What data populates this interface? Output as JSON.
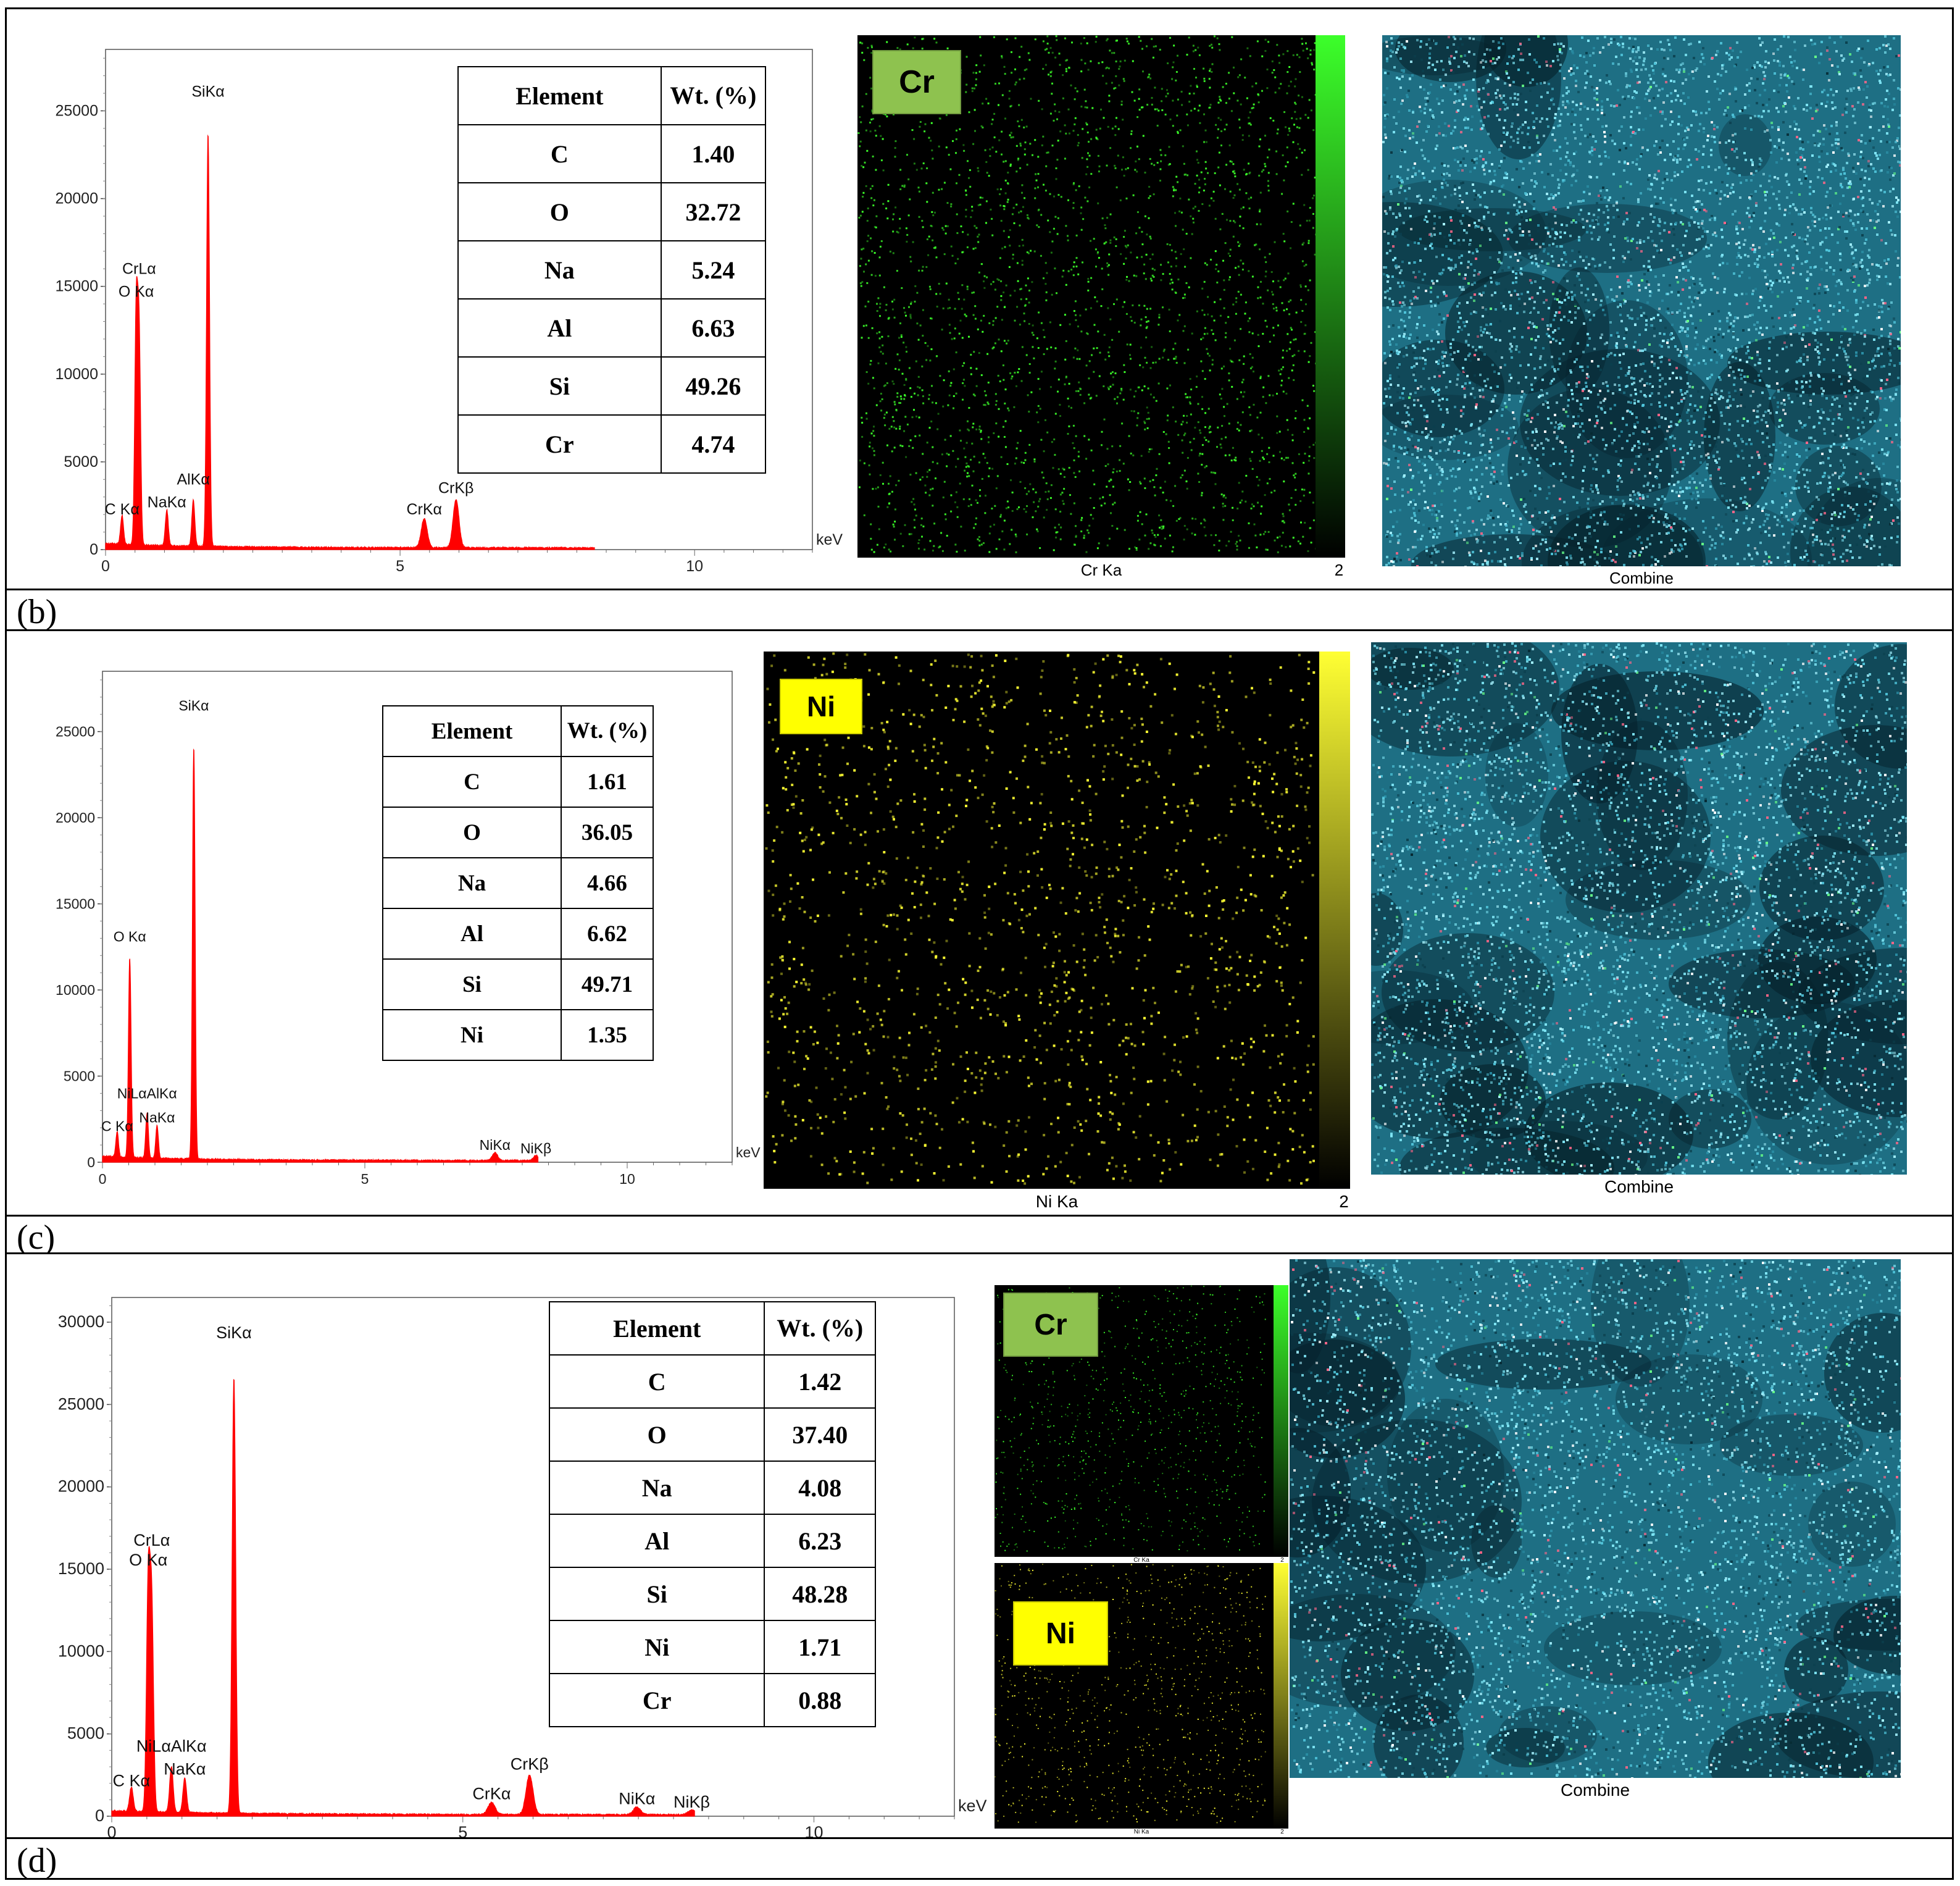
{
  "panels": [
    {
      "id": "b",
      "label": "(b)",
      "spectrum": {
        "y_ticks": [
          "0",
          "5000",
          "10000",
          "15000",
          "20000",
          "25000"
        ],
        "x_ticks": [
          "0",
          "5",
          "10"
        ],
        "x_unit": "keV",
        "peak_labels": [
          {
            "text": "SiKα",
            "x": 1.74,
            "y": 25600
          },
          {
            "text": "CrLα",
            "x": 0.57,
            "y": 15500
          },
          {
            "text": "O Kα",
            "x": 0.52,
            "y": 14200
          },
          {
            "text": "AlKα",
            "x": 1.49,
            "y": 3500
          },
          {
            "text": "NaKα",
            "x": 1.04,
            "y": 2200
          },
          {
            "text": "C Kα",
            "x": 0.28,
            "y": 1800
          },
          {
            "text": "CrKβ",
            "x": 5.95,
            "y": 3000
          },
          {
            "text": "CrKα",
            "x": 5.41,
            "y": 1800
          }
        ]
      },
      "table": {
        "header": [
          "Element",
          "Wt. (%)"
        ],
        "rows": [
          [
            "C",
            "1.40"
          ],
          [
            "O",
            "32.72"
          ],
          [
            "Na",
            "5.24"
          ],
          [
            "Al",
            "6.63"
          ],
          [
            "Si",
            "49.26"
          ],
          [
            "Cr",
            "4.74"
          ]
        ]
      },
      "maps": [
        {
          "badge": "Cr",
          "caption": "Cr Ka",
          "scale_max": "2",
          "color": "#3cff2a",
          "badge_bg": "#8ec24f"
        }
      ],
      "combine_label": "Combine"
    },
    {
      "id": "c",
      "label": "(c)",
      "spectrum": {
        "y_ticks": [
          "0",
          "5000",
          "10000",
          "15000",
          "20000",
          "25000"
        ],
        "x_ticks": [
          "0",
          "5",
          "10"
        ],
        "x_unit": "keV",
        "peak_labels": [
          {
            "text": "SiKα",
            "x": 1.74,
            "y": 26000
          },
          {
            "text": "O Kα",
            "x": 0.52,
            "y": 12600
          },
          {
            "text": "NiLαAlKα",
            "x": 0.85,
            "y": 3500
          },
          {
            "text": "NaKα",
            "x": 1.04,
            "y": 2100
          },
          {
            "text": "C Kα",
            "x": 0.28,
            "y": 1600
          },
          {
            "text": "NiKα",
            "x": 7.48,
            "y": 500
          },
          {
            "text": "NiKβ",
            "x": 8.26,
            "y": 300
          }
        ]
      },
      "table": {
        "header": [
          "Element",
          "Wt. (%)"
        ],
        "rows": [
          [
            "C",
            "1.61"
          ],
          [
            "O",
            "36.05"
          ],
          [
            "Na",
            "4.66"
          ],
          [
            "Al",
            "6.62"
          ],
          [
            "Si",
            "49.71"
          ],
          [
            "Ni",
            "1.35"
          ]
        ]
      },
      "maps": [
        {
          "badge": "Ni",
          "caption": "Ni Ka",
          "scale_max": "2",
          "color": "#ffff33",
          "badge_bg": "#ffff00"
        }
      ],
      "combine_label": "Combine"
    },
    {
      "id": "d",
      "label": "(d)",
      "spectrum": {
        "y_ticks": [
          "0",
          "5000",
          "10000",
          "15000",
          "20000",
          "25000",
          "30000"
        ],
        "x_ticks": [
          "0",
          "5",
          "10"
        ],
        "x_unit": "keV",
        "peak_labels": [
          {
            "text": "SiKα",
            "x": 1.74,
            "y": 28800
          },
          {
            "text": "CrLα",
            "x": 0.57,
            "y": 16200
          },
          {
            "text": "O Kα",
            "x": 0.52,
            "y": 15000
          },
          {
            "text": "NiLαAlKα",
            "x": 0.85,
            "y": 3700
          },
          {
            "text": "NaKα",
            "x": 1.04,
            "y": 2300
          },
          {
            "text": "C Kα",
            "x": 0.28,
            "y": 1600
          },
          {
            "text": "CrKβ",
            "x": 5.95,
            "y": 2600
          },
          {
            "text": "CrKα",
            "x": 5.41,
            "y": 800
          },
          {
            "text": "NiKα",
            "x": 7.48,
            "y": 500
          },
          {
            "text": "NiKβ",
            "x": 8.26,
            "y": 300
          }
        ]
      },
      "table": {
        "header": [
          "Element",
          "Wt. (%)"
        ],
        "rows": [
          [
            "C",
            "1.42"
          ],
          [
            "O",
            "37.40"
          ],
          [
            "Na",
            "4.08"
          ],
          [
            "Al",
            "6.23"
          ],
          [
            "Si",
            "48.28"
          ],
          [
            "Ni",
            "1.71"
          ],
          [
            "Cr",
            "0.88"
          ]
        ]
      },
      "maps": [
        {
          "badge": "Cr",
          "caption": "Cr Ka",
          "scale_max": "2",
          "color": "#3cff2a",
          "badge_bg": "#8ec24f"
        },
        {
          "badge": "Ni",
          "caption": "Ni Ka",
          "scale_max": "2",
          "color": "#ffff33",
          "badge_bg": "#ffff00"
        }
      ],
      "combine_label": "Combine"
    }
  ],
  "colors": {
    "spectrum": "#ff0000",
    "combine_base": "#1e6f84"
  },
  "spectra_peaks": [
    {
      "keV": 0.28,
      "counts": 1800
    },
    {
      "keV": 0.52,
      "counts": 13500
    },
    {
      "keV": 1.04,
      "counts": 2100
    },
    {
      "keV": 1.49,
      "counts": 3300
    },
    {
      "keV": 1.74,
      "counts": 25600
    },
    {
      "keV": 5.41,
      "counts": 1400
    }
  ]
}
